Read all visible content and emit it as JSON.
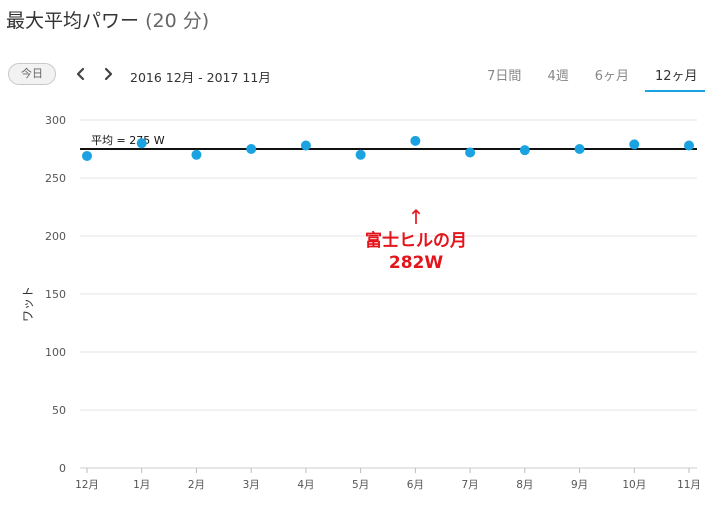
{
  "header": {
    "title": "最大平均パワー",
    "duration": "(20 分)"
  },
  "toolbar": {
    "today_label": "今日",
    "range_label": "2016 12月 - 2017 11月",
    "tabs": [
      {
        "label": "7日間",
        "active": false
      },
      {
        "label": "4週",
        "active": false
      },
      {
        "label": "6ヶ月",
        "active": false
      },
      {
        "label": "12ヶ月",
        "active": true
      }
    ]
  },
  "annotation": {
    "arrow": "↑",
    "line1": "富士ヒルの月",
    "line2": "282W"
  },
  "colors": {
    "point": "#1aa3e0",
    "average_line": "#111111",
    "annotation": "#e3141b",
    "accent": "#1aa3e0"
  },
  "chart_data": {
    "type": "scatter",
    "categories": [
      "12月",
      "1月",
      "2月",
      "3月",
      "4月",
      "5月",
      "6月",
      "7月",
      "8月",
      "9月",
      "10月",
      "11月"
    ],
    "values": [
      269,
      280,
      270,
      275,
      278,
      270,
      282,
      272,
      274,
      275,
      279,
      278
    ],
    "ylabel": "ワット",
    "ylim": [
      0,
      300
    ],
    "yticks": [
      0,
      50,
      100,
      150,
      200,
      250,
      300
    ],
    "average": {
      "label": "平均 = 275 W",
      "value": 275
    },
    "grid": true
  }
}
